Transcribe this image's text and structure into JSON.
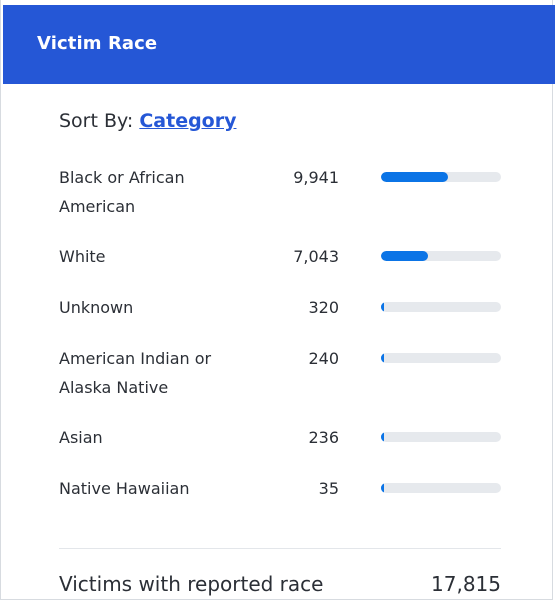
{
  "header": {
    "title": "Victim Race"
  },
  "sort": {
    "prefix": "Sort By:",
    "link": "Category"
  },
  "rows": [
    {
      "label": "Black or African American",
      "value": "9,941",
      "fraction": 0.558
    },
    {
      "label": "White",
      "value": "7,043",
      "fraction": 0.395
    },
    {
      "label": "Unknown",
      "value": "320",
      "fraction": 0.018
    },
    {
      "label": "American Indian or Alaska Native",
      "value": "240",
      "fraction": 0.013
    },
    {
      "label": "Asian",
      "value": "236",
      "fraction": 0.013
    },
    {
      "label": "Native Hawaiian",
      "value": "35",
      "fraction": 0.002
    }
  ],
  "total": {
    "label": "Victims with reported race",
    "value": "17,815"
  },
  "colors": {
    "header": "#2557d6",
    "bar": "#0b74e6",
    "track": "#e6e9ed"
  }
}
